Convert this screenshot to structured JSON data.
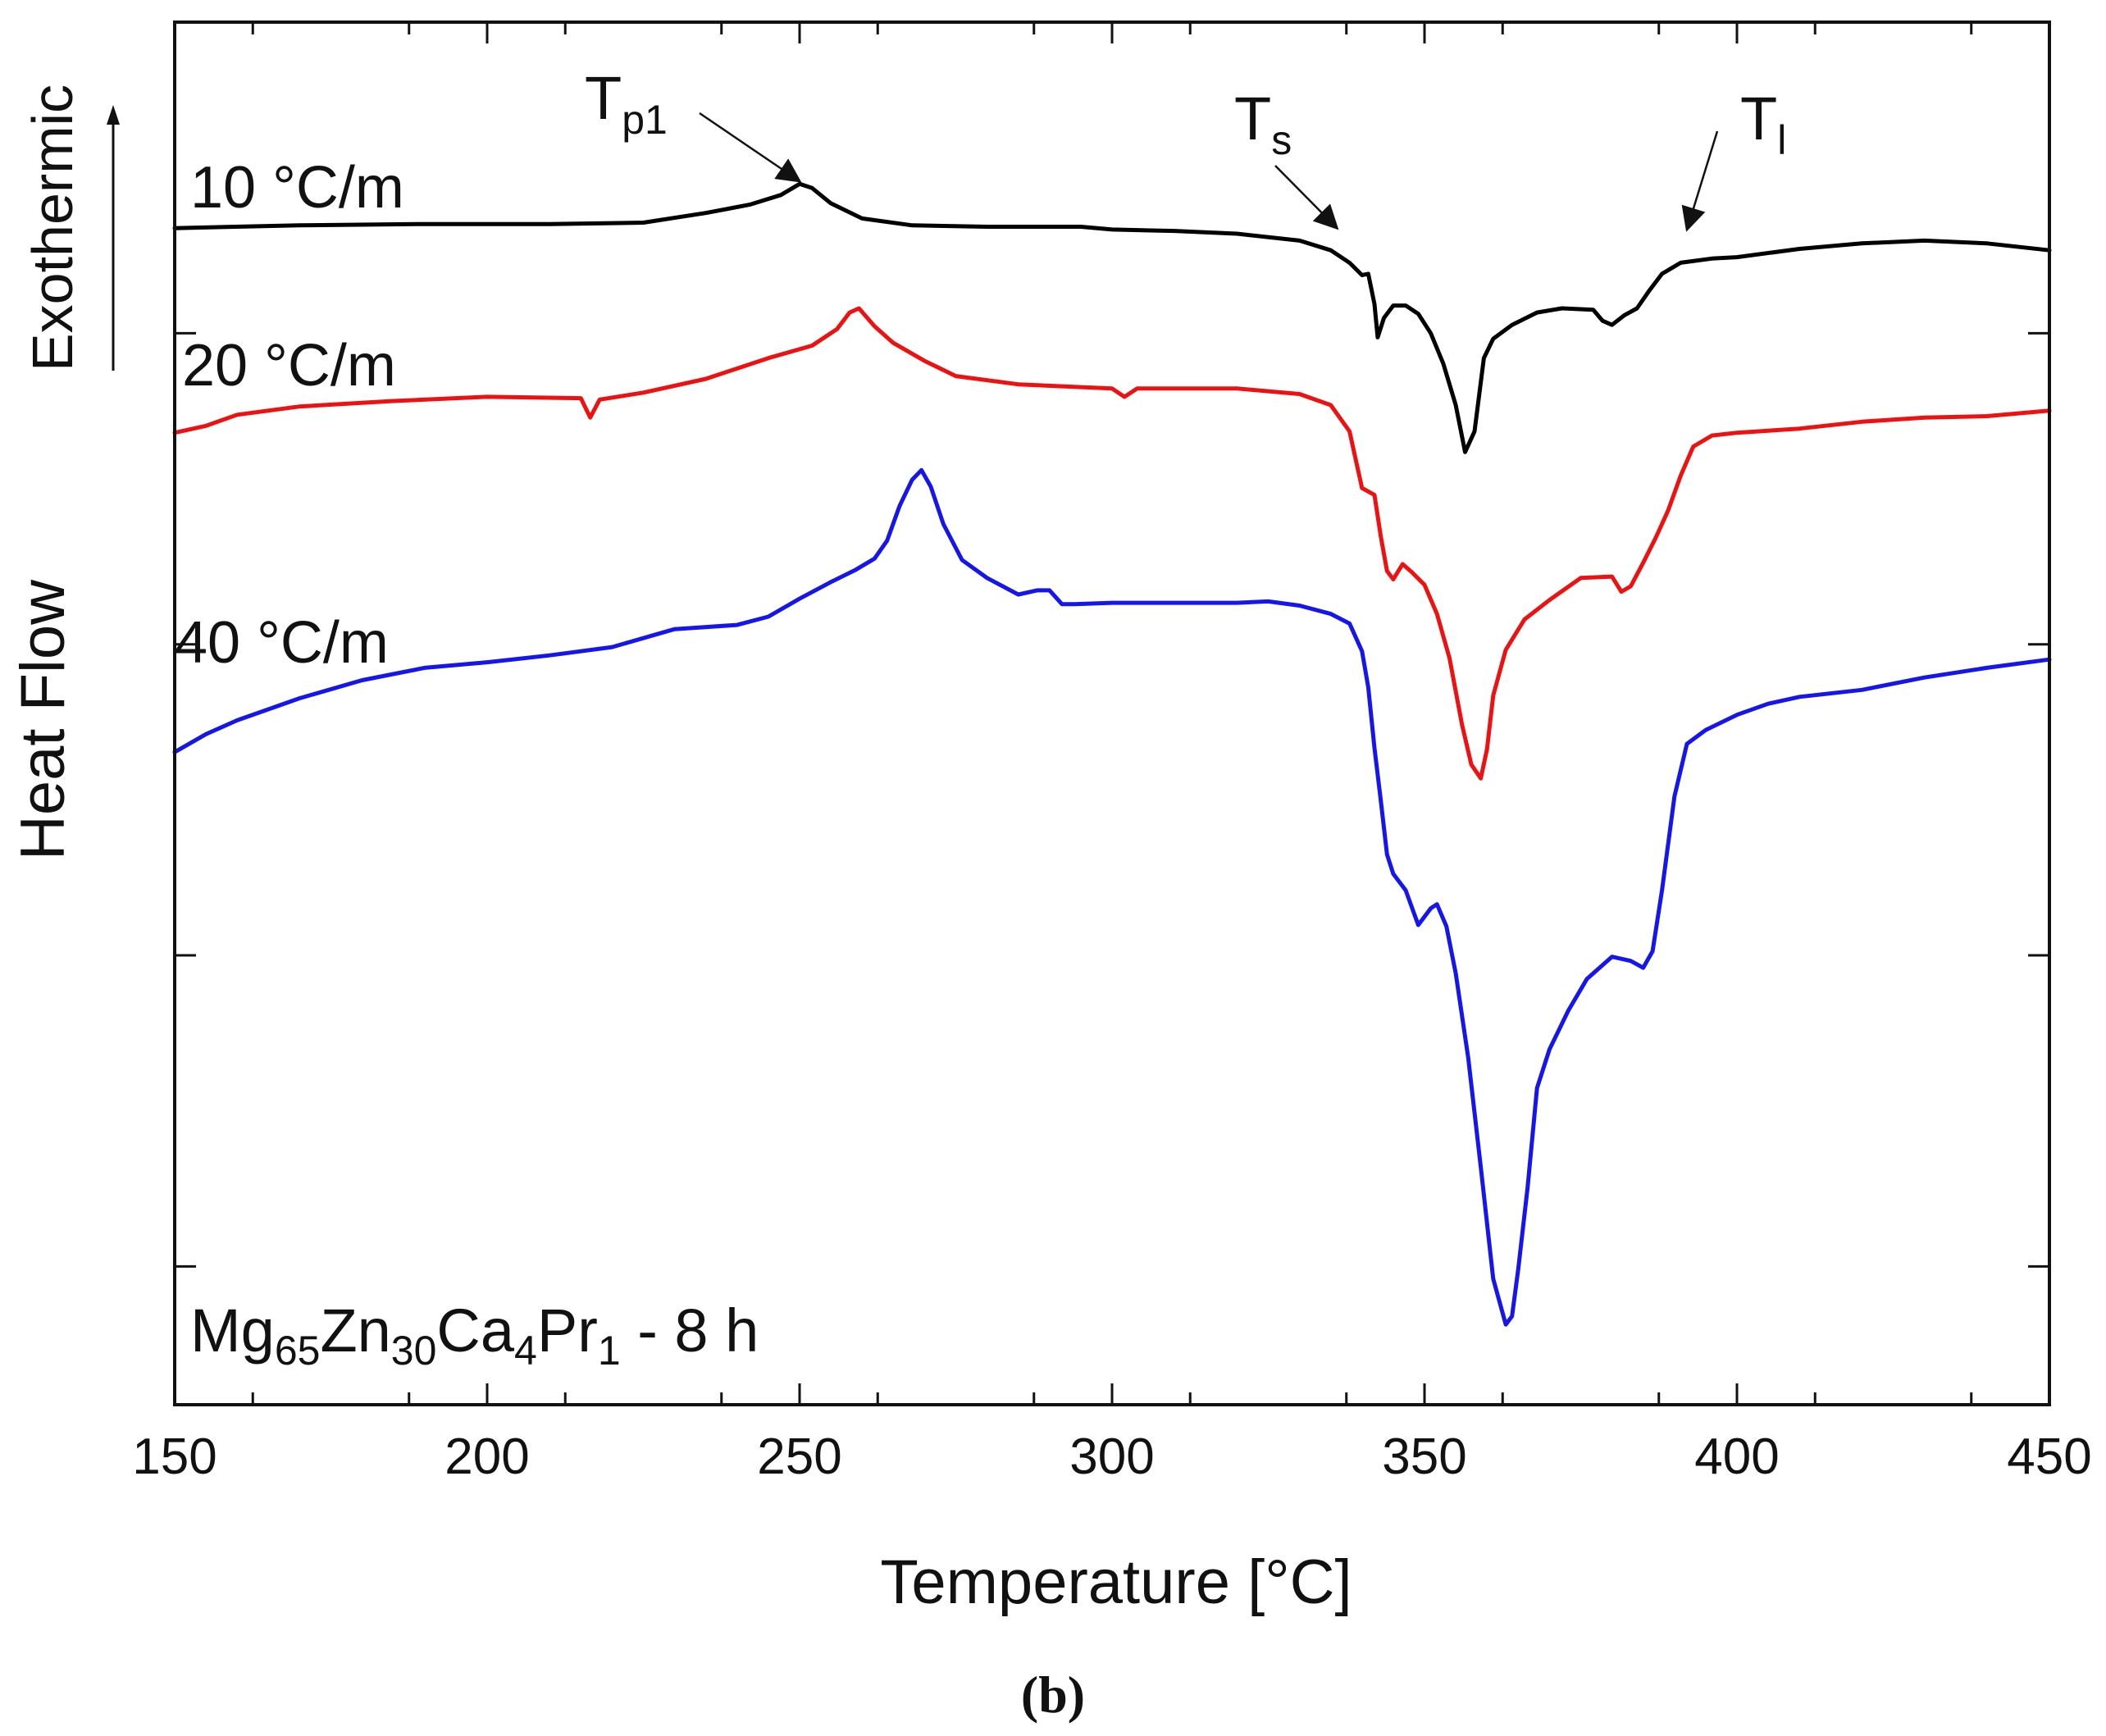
{
  "chart_data": {
    "type": "line",
    "xlabel": "Temperature [°C]",
    "ylabel": "Heat Flow",
    "exo_label": "Exothermic",
    "xlim": [
      150,
      450
    ],
    "ylim": [
      0,
      100
    ],
    "x_ticks": [
      "150",
      "200",
      "250",
      "300",
      "350",
      "400",
      "450"
    ],
    "y_ticks_unlabeled": [
      10,
      32.5,
      55,
      77.5
    ],
    "caption": "(b)",
    "sample": {
      "base1": "Mg",
      "sub1": "65",
      "base2": "Zn",
      "sub2": "30",
      "base3": "Ca",
      "sub3": "4",
      "base4": "Pr",
      "sub4": "1",
      "suffix": " - 8 h"
    },
    "annotations": [
      {
        "id": "tp1",
        "label": "T",
        "sub": "p1",
        "x": 250,
        "y": 88.5
      },
      {
        "id": "ts",
        "label": "T",
        "sub": "s",
        "x": 336,
        "y": 85.1
      },
      {
        "id": "tl",
        "label": "T",
        "sub": "l",
        "x": 392,
        "y": 85.0
      }
    ],
    "series": [
      {
        "name": "10 °C/m",
        "color": "#000000",
        "points": [
          [
            150,
            85.1
          ],
          [
            170,
            85.3
          ],
          [
            190,
            85.4
          ],
          [
            210,
            85.4
          ],
          [
            225,
            85.5
          ],
          [
            235,
            86.2
          ],
          [
            242,
            86.8
          ],
          [
            247,
            87.5
          ],
          [
            250,
            88.3
          ],
          [
            252,
            88.0
          ],
          [
            255,
            86.9
          ],
          [
            260,
            85.8
          ],
          [
            268,
            85.3
          ],
          [
            280,
            85.2
          ],
          [
            295,
            85.2
          ],
          [
            300,
            85.0
          ],
          [
            310,
            84.9
          ],
          [
            320,
            84.7
          ],
          [
            330,
            84.2
          ],
          [
            335,
            83.5
          ],
          [
            338,
            82.6
          ],
          [
            340,
            81.7
          ],
          [
            341,
            81.8
          ],
          [
            342,
            79.6
          ],
          [
            342.5,
            77.2
          ],
          [
            343.5,
            78.6
          ],
          [
            345,
            79.5
          ],
          [
            347,
            79.5
          ],
          [
            349,
            78.9
          ],
          [
            351,
            77.5
          ],
          [
            353,
            75.3
          ],
          [
            355,
            72.3
          ],
          [
            356.5,
            68.9
          ],
          [
            358,
            70.4
          ],
          [
            359.5,
            75.7
          ],
          [
            361,
            77.1
          ],
          [
            364,
            78.1
          ],
          [
            368,
            79.0
          ],
          [
            372,
            79.3
          ],
          [
            377,
            79.2
          ],
          [
            378.5,
            78.4
          ],
          [
            380,
            78.1
          ],
          [
            382,
            78.8
          ],
          [
            384,
            79.3
          ],
          [
            386,
            80.6
          ],
          [
            388,
            81.8
          ],
          [
            391,
            82.6
          ],
          [
            396,
            82.9
          ],
          [
            400,
            83.0
          ],
          [
            410,
            83.6
          ],
          [
            420,
            84.0
          ],
          [
            430,
            84.2
          ],
          [
            440,
            84.0
          ],
          [
            450,
            83.5
          ]
        ]
      },
      {
        "name": "20 °C/m",
        "color": "#ee1111",
        "points": [
          [
            150,
            70.3
          ],
          [
            155,
            70.8
          ],
          [
            160,
            71.6
          ],
          [
            170,
            72.2
          ],
          [
            185,
            72.6
          ],
          [
            200,
            72.9
          ],
          [
            215,
            72.8
          ],
          [
            216.5,
            71.4
          ],
          [
            218,
            72.7
          ],
          [
            225,
            73.2
          ],
          [
            235,
            74.2
          ],
          [
            245,
            75.7
          ],
          [
            252,
            76.6
          ],
          [
            256,
            77.8
          ],
          [
            258,
            79.0
          ],
          [
            259.5,
            79.3
          ],
          [
            262,
            78.0
          ],
          [
            265,
            76.8
          ],
          [
            270,
            75.5
          ],
          [
            275,
            74.4
          ],
          [
            285,
            73.8
          ],
          [
            300,
            73.5
          ],
          [
            302,
            72.9
          ],
          [
            304,
            73.5
          ],
          [
            320,
            73.5
          ],
          [
            330,
            73.1
          ],
          [
            335,
            72.3
          ],
          [
            338,
            70.4
          ],
          [
            340,
            66.3
          ],
          [
            342,
            65.8
          ],
          [
            343,
            62.8
          ],
          [
            344,
            60.3
          ],
          [
            345,
            59.7
          ],
          [
            346.5,
            60.8
          ],
          [
            348,
            60.2
          ],
          [
            350,
            59.3
          ],
          [
            352,
            57.2
          ],
          [
            354,
            54.0
          ],
          [
            356,
            49.2
          ],
          [
            357.5,
            46.3
          ],
          [
            359,
            45.3
          ],
          [
            360,
            47.4
          ],
          [
            361,
            51.3
          ],
          [
            363,
            54.6
          ],
          [
            366,
            56.8
          ],
          [
            370,
            58.2
          ],
          [
            375,
            59.8
          ],
          [
            380,
            59.9
          ],
          [
            381.5,
            58.8
          ],
          [
            383,
            59.2
          ],
          [
            385,
            60.9
          ],
          [
            387,
            62.7
          ],
          [
            389,
            64.7
          ],
          [
            391,
            67.2
          ],
          [
            393,
            69.3
          ],
          [
            396,
            70.1
          ],
          [
            400,
            70.3
          ],
          [
            410,
            70.6
          ],
          [
            420,
            71.1
          ],
          [
            430,
            71.4
          ],
          [
            440,
            71.5
          ],
          [
            450,
            71.9
          ]
        ]
      },
      {
        "name": "40 °C/m",
        "color": "#1515ee",
        "points": [
          [
            150,
            47.2
          ],
          [
            155,
            48.5
          ],
          [
            160,
            49.5
          ],
          [
            170,
            51.1
          ],
          [
            180,
            52.4
          ],
          [
            190,
            53.3
          ],
          [
            200,
            53.7
          ],
          [
            210,
            54.2
          ],
          [
            220,
            54.8
          ],
          [
            230,
            56.1
          ],
          [
            240,
            56.4
          ],
          [
            245,
            57.0
          ],
          [
            250,
            58.3
          ],
          [
            255,
            59.5
          ],
          [
            259,
            60.4
          ],
          [
            262,
            61.2
          ],
          [
            264,
            62.5
          ],
          [
            266,
            65.0
          ],
          [
            268,
            66.9
          ],
          [
            269.5,
            67.6
          ],
          [
            271,
            66.4
          ],
          [
            273,
            63.7
          ],
          [
            276,
            61.1
          ],
          [
            280,
            59.8
          ],
          [
            285,
            58.6
          ],
          [
            288,
            58.9
          ],
          [
            290,
            58.9
          ],
          [
            292,
            57.9
          ],
          [
            294,
            57.9
          ],
          [
            300,
            58.0
          ],
          [
            310,
            58.0
          ],
          [
            320,
            58.0
          ],
          [
            325,
            58.1
          ],
          [
            330,
            57.8
          ],
          [
            335,
            57.2
          ],
          [
            338,
            56.5
          ],
          [
            340,
            54.5
          ],
          [
            341,
            51.9
          ],
          [
            342,
            47.5
          ],
          [
            343,
            43.7
          ],
          [
            344,
            39.8
          ],
          [
            345,
            38.4
          ],
          [
            347,
            37.2
          ],
          [
            349,
            34.7
          ],
          [
            351,
            35.9
          ],
          [
            352,
            36.2
          ],
          [
            353.5,
            34.6
          ],
          [
            355,
            31.2
          ],
          [
            357,
            25.1
          ],
          [
            359,
            17.2
          ],
          [
            361,
            9.1
          ],
          [
            363,
            5.8
          ],
          [
            364,
            6.4
          ],
          [
            365,
            9.8
          ],
          [
            366.5,
            15.7
          ],
          [
            368,
            22.9
          ],
          [
            370,
            25.7
          ],
          [
            373,
            28.5
          ],
          [
            376,
            30.8
          ],
          [
            380,
            32.4
          ],
          [
            383,
            32.1
          ],
          [
            385,
            31.6
          ],
          [
            386.5,
            32.8
          ],
          [
            388,
            37.2
          ],
          [
            390,
            44.0
          ],
          [
            392,
            47.8
          ],
          [
            395,
            48.8
          ],
          [
            400,
            49.9
          ],
          [
            405,
            50.7
          ],
          [
            410,
            51.2
          ],
          [
            420,
            51.7
          ],
          [
            430,
            52.6
          ],
          [
            440,
            53.3
          ],
          [
            450,
            53.9
          ]
        ]
      }
    ]
  }
}
